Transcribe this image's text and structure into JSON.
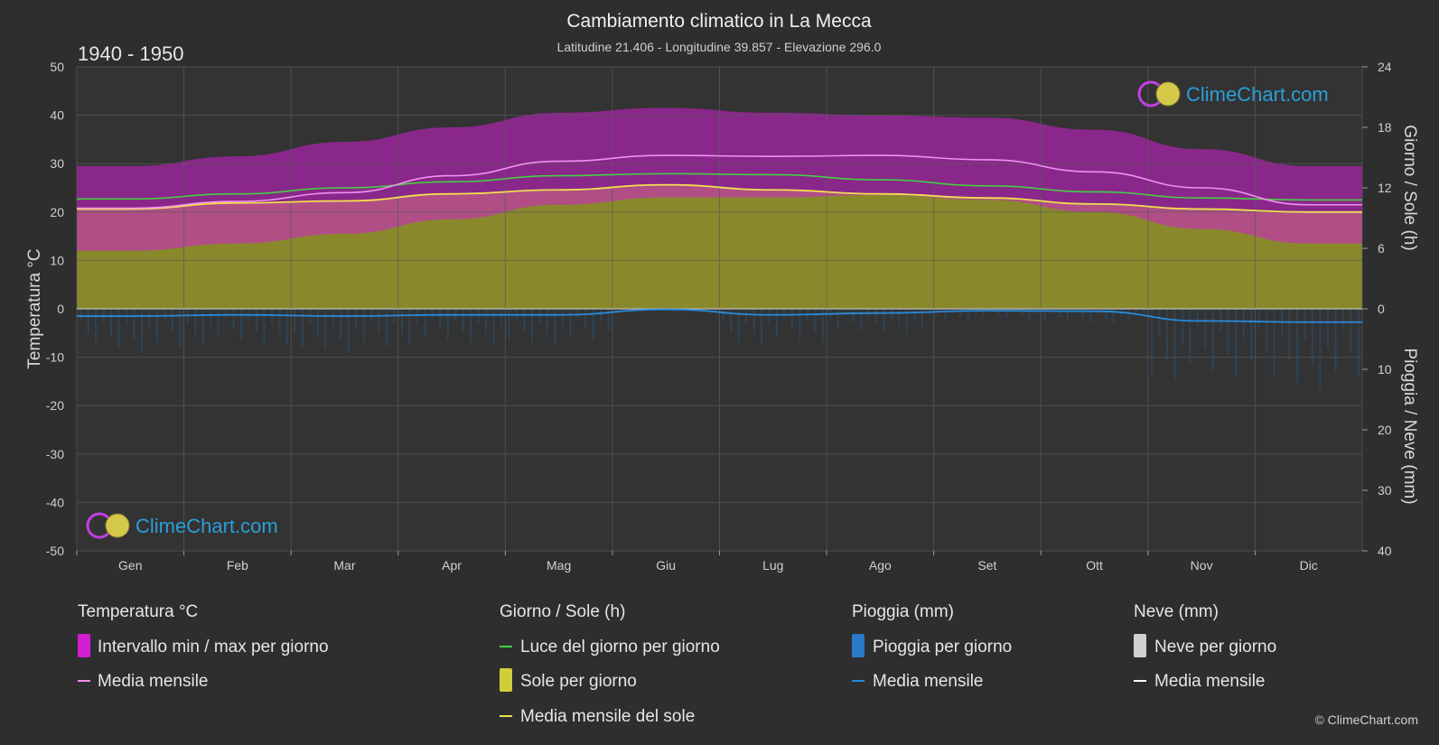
{
  "chart": {
    "title": "Cambiamento climatico in La Mecca",
    "subtitle": "Latitudine 21.406 - Longitudine 39.857 - Elevazione 296.0",
    "period": "1940 - 1950",
    "left_axis_label": "Temperatura °C",
    "right_axis_label_top": "Giorno / Sole (h)",
    "right_axis_label_bottom": "Pioggia / Neve (mm)",
    "logo_text": "ClimeChart.com",
    "copyright": "© ClimeChart.com"
  },
  "legend": {
    "temperature": {
      "title": "Temperatura °C",
      "item1": "Intervallo min / max per giorno",
      "item2": "Media mensile"
    },
    "sun": {
      "title": "Giorno / Sole (h)",
      "item1": "Luce del giorno per giorno",
      "item2": "Sole per giorno",
      "item3": "Media mensile del sole"
    },
    "rain": {
      "title": "Pioggia (mm)",
      "item1": "Pioggia per giorno",
      "item2": "Media mensile"
    },
    "snow": {
      "title": "Neve (mm)",
      "item1": "Neve per giorno",
      "item2": "Media mensile"
    }
  },
  "colors": {
    "temp_range": "#d21ed2",
    "temp_mean": "#f28ff2",
    "daylight": "#44d044",
    "sunshine_fill": "#8e8e2c",
    "sun_mean": "#f0e050",
    "rain": "#1e6aa8",
    "rain_mean": "#2a8ad8",
    "snow_mean": "#ffffff"
  },
  "chart_data": {
    "type": "line",
    "categories": [
      "Gen",
      "Feb",
      "Mar",
      "Apr",
      "Mag",
      "Giu",
      "Lug",
      "Ago",
      "Set",
      "Ott",
      "Nov",
      "Dic"
    ],
    "left_axis": {
      "ticks": [
        50,
        40,
        30,
        20,
        10,
        0,
        -10,
        -20,
        -30,
        -40,
        -50
      ],
      "ylim": [
        -50,
        50
      ]
    },
    "right_axis_top": {
      "ticks": [
        24,
        18,
        12,
        6,
        0
      ],
      "ylim": [
        0,
        24
      ]
    },
    "right_axis_bottom": {
      "ticks": [
        0,
        10,
        20,
        30,
        40
      ],
      "ylim": [
        0,
        40
      ]
    },
    "grid": true,
    "series": [
      {
        "name": "Media mensile",
        "unit": "°C",
        "values": [
          20.8,
          22.2,
          24.0,
          27.5,
          30.5,
          31.7,
          31.5,
          31.7,
          30.8,
          28.3,
          25.0,
          21.5
        ]
      },
      {
        "name": "Intervallo min / max per giorno (max)",
        "unit": "°C",
        "values": [
          29.5,
          31.5,
          34.5,
          37.5,
          40.5,
          41.5,
          40.5,
          40.0,
          39.5,
          37.0,
          33.0,
          29.5
        ]
      },
      {
        "name": "Intervallo min / max per giorno (min)",
        "unit": "°C",
        "values": [
          12.0,
          13.5,
          15.5,
          18.5,
          21.5,
          23.0,
          23.0,
          23.5,
          22.5,
          20.0,
          16.5,
          13.5
        ]
      },
      {
        "name": "Luce del giorno per giorno",
        "unit": "h",
        "values": [
          10.9,
          11.4,
          12.0,
          12.6,
          13.2,
          13.4,
          13.3,
          12.8,
          12.2,
          11.6,
          11.0,
          10.8
        ]
      },
      {
        "name": "Media mensile del sole",
        "unit": "h",
        "values": [
          9.9,
          10.5,
          10.7,
          11.4,
          11.8,
          12.3,
          11.8,
          11.4,
          11.0,
          10.4,
          9.9,
          9.6
        ]
      },
      {
        "name": "Pioggia (mm) - Media mensile",
        "unit": "mm",
        "values": [
          1.2,
          1.0,
          1.2,
          1.0,
          1.0,
          0.1,
          1.0,
          0.7,
          0.3,
          0.4,
          2.0,
          2.2
        ]
      }
    ]
  }
}
